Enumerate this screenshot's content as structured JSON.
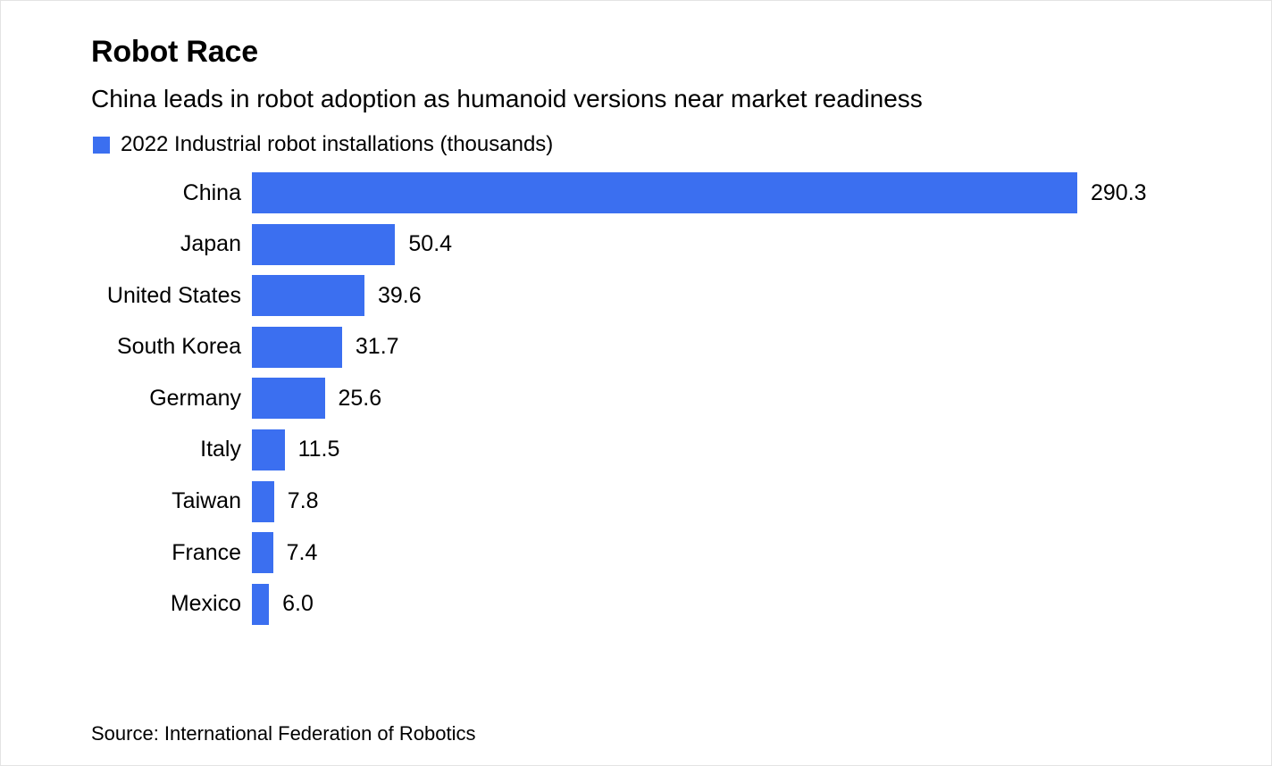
{
  "header": {
    "title": "Robot Race",
    "subtitle": "China leads in robot adoption as humanoid versions near market readiness"
  },
  "legend": {
    "label": "2022 Industrial robot installations (thousands)",
    "swatch_color": "#3b6ff0"
  },
  "chart_data": {
    "type": "bar",
    "orientation": "horizontal",
    "title": "Robot Race",
    "subtitle": "China leads in robot adoption as humanoid versions near market readiness",
    "series_label": "2022 Industrial robot installations (thousands)",
    "categories": [
      "China",
      "Japan",
      "United States",
      "South Korea",
      "Germany",
      "Italy",
      "Taiwan",
      "France",
      "Mexico"
    ],
    "values": [
      290.3,
      50.4,
      39.6,
      31.7,
      25.6,
      11.5,
      7.8,
      7.4,
      6.0
    ],
    "value_labels": [
      "290.3",
      "50.4",
      "39.6",
      "31.7",
      "25.6",
      "11.5",
      "7.8",
      "7.4",
      "6.0"
    ],
    "xlim": [
      0,
      290.3
    ],
    "bar_color": "#3b6ff0",
    "grid": false,
    "legend_position": "top-left"
  },
  "footer": {
    "source": "Source: International Federation of Robotics"
  }
}
